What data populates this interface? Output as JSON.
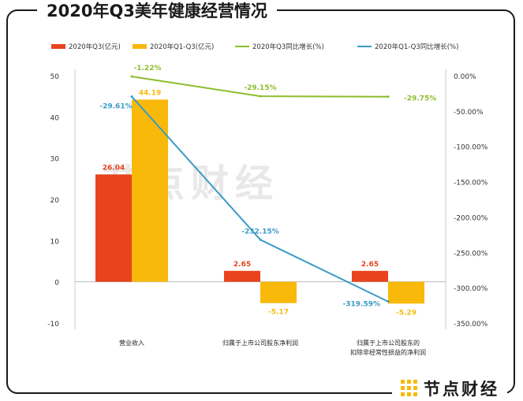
{
  "title": "2020年Q3美年健康经营情况",
  "brand": {
    "name": "节点财经",
    "logo_icon": "brand-logo-icon"
  },
  "watermark": "节点财经",
  "colors": {
    "q3_bar": "#e8431d",
    "ytd_bar": "#f8b90b",
    "q3_line": "#8cbe2b",
    "ytd_line": "#3a9bc6"
  },
  "chart_data": {
    "type": "bar",
    "categories": [
      "营业收入",
      "归属于上市公司股东净利润",
      "归属于上市公司股东的\n扣除非经常性损益的净利润"
    ],
    "series": [
      {
        "name": "2020年Q3(亿元)",
        "kind": "bar",
        "axis": "left",
        "values": [
          26.04,
          2.65,
          2.65
        ],
        "labels": [
          "26.04",
          "2.65",
          "2.65"
        ]
      },
      {
        "name": "2020年Q1-Q3(亿元)",
        "kind": "bar",
        "axis": "left",
        "values": [
          44.19,
          -5.17,
          -5.29
        ],
        "labels": [
          "44.19",
          "-5.17",
          "-5.29"
        ]
      },
      {
        "name": "2020年Q3同比增长(%)",
        "kind": "line",
        "axis": "right",
        "values": [
          -1.22,
          -29.15,
          -29.75
        ],
        "labels": [
          "-1.22%",
          "-29.15%",
          "-29.75%"
        ]
      },
      {
        "name": "2020年Q1-Q3同比增长(%)",
        "kind": "line",
        "axis": "right",
        "values": [
          -29.61,
          -232.15,
          -319.59
        ],
        "labels": [
          "-29.61%",
          "-232.15%",
          "-319.59%"
        ]
      }
    ],
    "left_axis": {
      "min": -10,
      "max": 50,
      "ticks": [
        "50",
        "40",
        "30",
        "20",
        "10",
        "0",
        "-10"
      ],
      "tick_values": [
        50,
        40,
        30,
        20,
        10,
        0,
        -10
      ]
    },
    "right_axis": {
      "min": -350,
      "max": 0,
      "ticks": [
        "0.00%",
        "-50.00%",
        "-100.00%",
        "-150.00%",
        "-200.00%",
        "-250.00%",
        "-300.00%",
        "-350.00%"
      ],
      "tick_values": [
        0,
        -50,
        -100,
        -150,
        -200,
        -250,
        -300,
        -350
      ]
    },
    "legend_position": "top",
    "grid": false
  }
}
